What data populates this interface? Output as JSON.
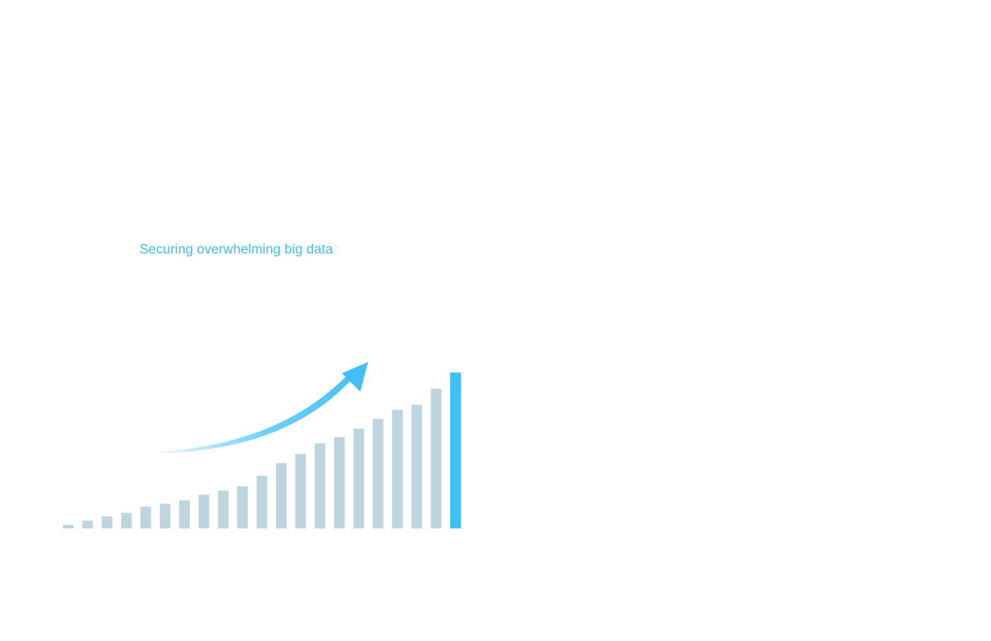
{
  "headline": "Securing overwhelming big data",
  "colors": {
    "accent": "#3ec1f9",
    "bar": "#bcd5df",
    "background": "#ffffff"
  },
  "chart_data": {
    "type": "bar",
    "title": "",
    "xlabel": "",
    "ylabel": "",
    "ylim": [
      0,
      225
    ],
    "grid": false,
    "legend": "none",
    "series": [
      {
        "values": [
          5,
          11,
          17,
          22,
          31,
          35,
          40,
          48,
          54,
          60,
          75,
          93,
          106,
          121,
          130,
          142,
          156,
          169,
          176,
          199,
          222
        ],
        "highlight_index": 20
      }
    ],
    "annotations": [
      {
        "type": "arrow",
        "icon": "trend-up-arrow-icon",
        "direction": "up-right"
      }
    ]
  }
}
